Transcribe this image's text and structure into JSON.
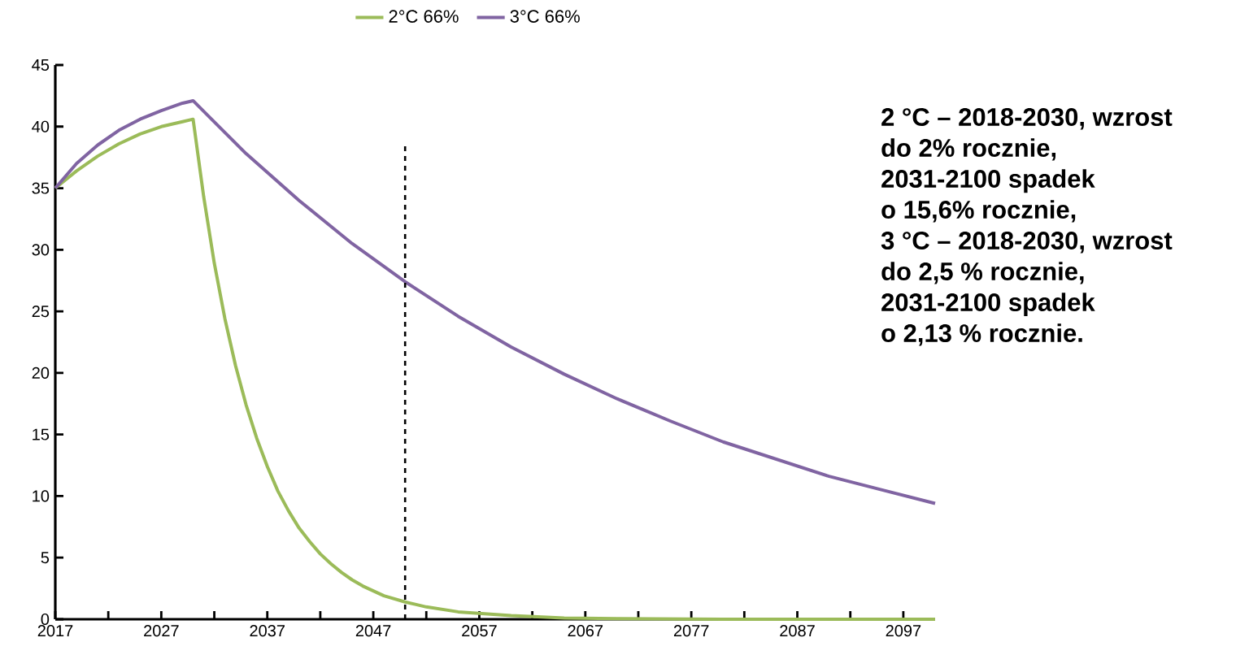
{
  "chart_data": {
    "type": "line",
    "xlim": [
      2017,
      2100
    ],
    "ylim": [
      0,
      45
    ],
    "xticks": [
      2017,
      {
        "value": 2022,
        "label": null
      },
      2027,
      {
        "value": 2032,
        "label": null
      },
      2037,
      {
        "value": 2042,
        "label": null
      },
      2047,
      {
        "value": 2052,
        "label": null
      },
      2057,
      {
        "value": 2062,
        "label": null
      },
      2067,
      {
        "value": 2072,
        "label": null
      },
      2077,
      {
        "value": 2082,
        "label": null
      },
      2087,
      {
        "value": 2092,
        "label": null
      },
      2097
    ],
    "yticks": [
      0,
      5,
      10,
      15,
      20,
      25,
      30,
      35,
      40,
      45
    ],
    "grid": false,
    "legend": "top",
    "marker": "none",
    "line_style": "solid",
    "series": [
      {
        "name": "2°C  66%",
        "color": "#9bbb59",
        "x": [
          2017,
          2019,
          2021,
          2023,
          2025,
          2027,
          2029,
          2030,
          2031,
          2032,
          2033,
          2034,
          2035,
          2036,
          2037,
          2038,
          2039,
          2040,
          2041,
          2042,
          2043,
          2044,
          2045,
          2046,
          2047,
          2048,
          2050,
          2052,
          2055,
          2060,
          2065,
          2070,
          2080,
          2090,
          2100
        ],
        "values": [
          35,
          36.4,
          37.6,
          38.6,
          39.4,
          40.0,
          40.4,
          40.6,
          34.3,
          28.9,
          24.4,
          20.6,
          17.4,
          14.7,
          12.4,
          10.4,
          8.8,
          7.4,
          6.3,
          5.3,
          4.5,
          3.8,
          3.2,
          2.7,
          2.3,
          1.9,
          1.4,
          1.0,
          0.6,
          0.3,
          0.1,
          0.05,
          0,
          0,
          0
        ]
      },
      {
        "name": "3°C  66%",
        "color": "#8064a2",
        "x": [
          2017,
          2019,
          2021,
          2023,
          2025,
          2027,
          2029,
          2030,
          2035,
          2040,
          2045,
          2050,
          2055,
          2060,
          2065,
          2070,
          2075,
          2080,
          2085,
          2090,
          2095,
          2100
        ],
        "values": [
          35,
          37.0,
          38.5,
          39.7,
          40.6,
          41.3,
          41.9,
          42.1,
          37.8,
          34.0,
          30.5,
          27.4,
          24.6,
          22.1,
          19.9,
          17.9,
          16.1,
          14.4,
          13.0,
          11.6,
          10.5,
          9.4
        ]
      }
    ],
    "ref_lines": [
      {
        "axis": "x",
        "value": 2050,
        "color": "#000000",
        "line_style": "dashed"
      }
    ],
    "annotations": [
      "2 °C – 2018-2030, wzrost",
      "do 2% rocznie,",
      "2031-2100 spadek",
      "o 15,6% rocznie,",
      "3 °C – 2018-2030, wzrost",
      "do 2,5 % rocznie,",
      "2031-2100 spadek",
      "o 2,13 % rocznie."
    ]
  }
}
